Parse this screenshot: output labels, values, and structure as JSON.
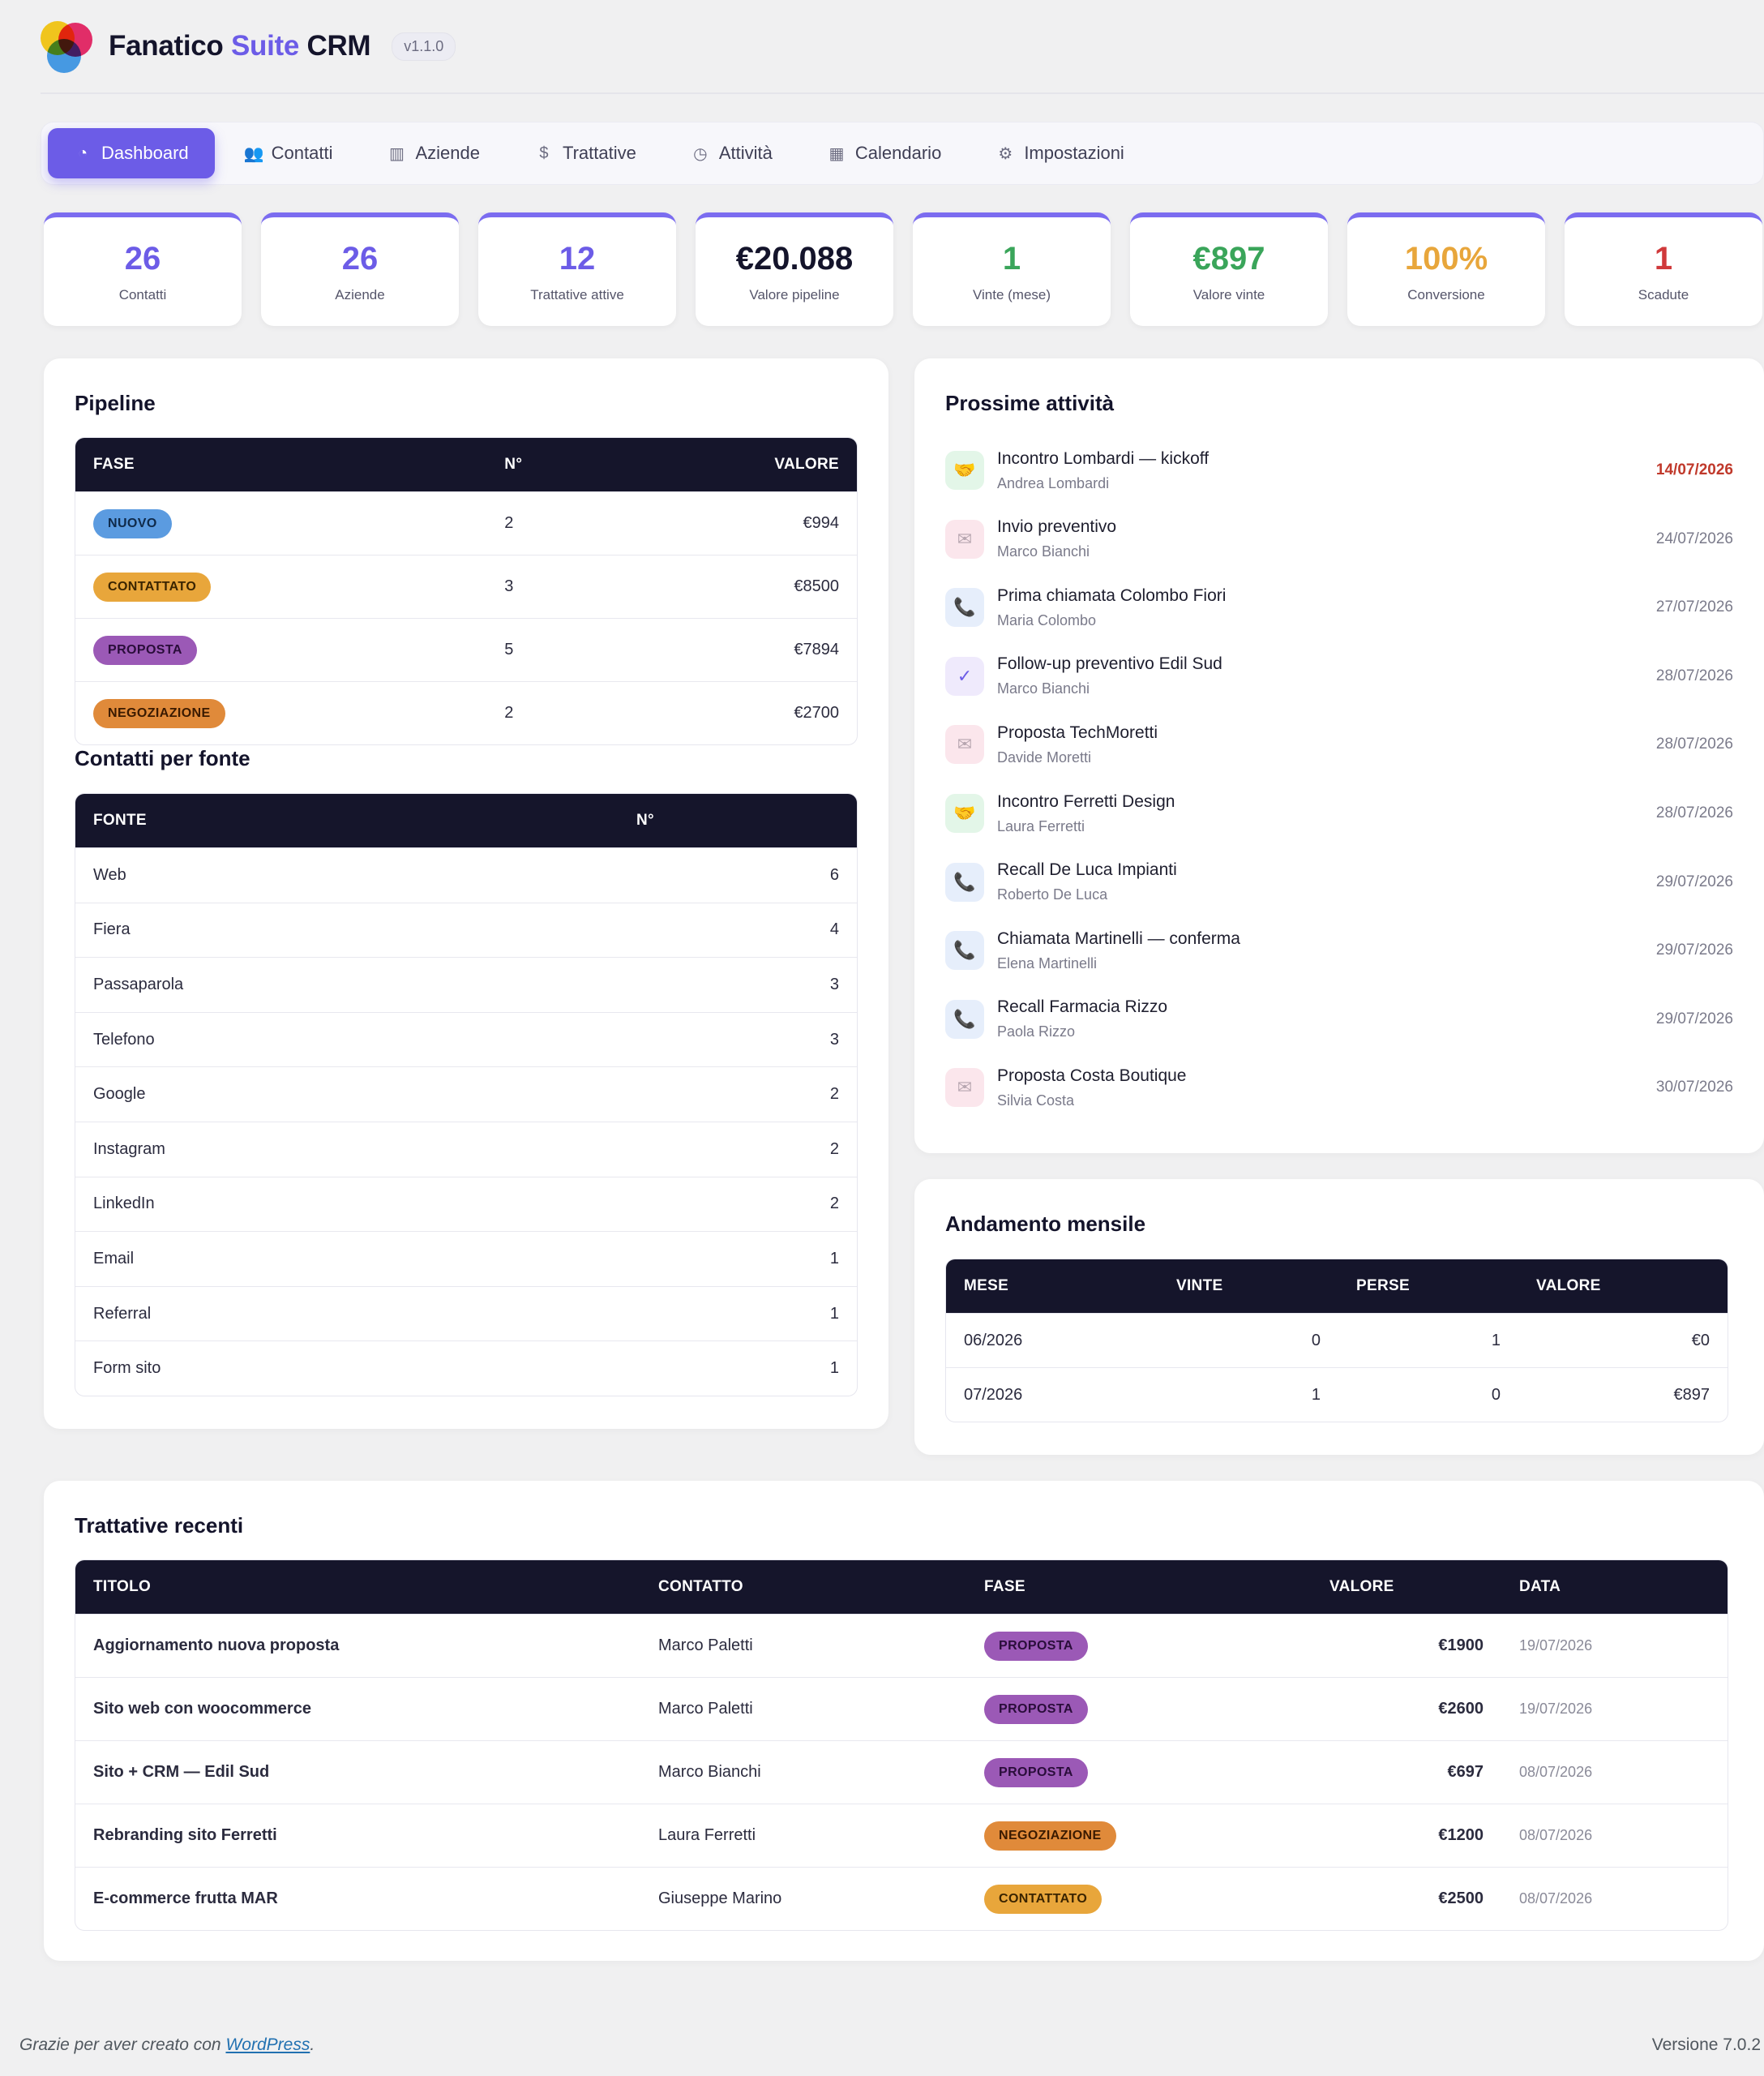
{
  "header": {
    "brand_main": "Fanatico",
    "brand_suite": "Suite",
    "brand_crm": "CRM",
    "version": "v1.1.0"
  },
  "nav": [
    {
      "label": "Dashboard",
      "icon": "dashboard-icon",
      "active": true
    },
    {
      "label": "Contatti",
      "icon": "users-icon"
    },
    {
      "label": "Aziende",
      "icon": "building-icon"
    },
    {
      "label": "Trattative",
      "icon": "dollar-icon"
    },
    {
      "label": "Attività",
      "icon": "clock-icon"
    },
    {
      "label": "Calendario",
      "icon": "calendar-icon"
    },
    {
      "label": "Impostazioni",
      "icon": "gear-icon"
    }
  ],
  "stats": [
    {
      "value": "26",
      "label": "Contatti",
      "color": "#6c5ce7"
    },
    {
      "value": "26",
      "label": "Aziende",
      "color": "#6c5ce7"
    },
    {
      "value": "12",
      "label": "Trattative attive",
      "color": "#6c5ce7"
    },
    {
      "value": "€20.088",
      "label": "Valore pipeline",
      "color": "#14142b"
    },
    {
      "value": "1",
      "label": "Vinte (mese)",
      "color": "#3aa55a"
    },
    {
      "value": "€897",
      "label": "Valore vinte",
      "color": "#3aa55a"
    },
    {
      "value": "100%",
      "label": "Conversione",
      "color": "#e8a63b"
    },
    {
      "value": "1",
      "label": "Scadute",
      "color": "#d0393b"
    }
  ],
  "pipeline": {
    "title": "Pipeline",
    "headers": [
      "FASE",
      "N°",
      "VALORE"
    ],
    "rows": [
      {
        "fase": "NUOVO",
        "cls": "b-nuovo",
        "n": "2",
        "valore": "€994"
      },
      {
        "fase": "CONTATTATO",
        "cls": "b-contattato",
        "n": "3",
        "valore": "€8500"
      },
      {
        "fase": "PROPOSTA",
        "cls": "b-proposta",
        "n": "5",
        "valore": "€7894"
      },
      {
        "fase": "NEGOZIAZIONE",
        "cls": "b-negoziazione",
        "n": "2",
        "valore": "€2700"
      }
    ]
  },
  "fonti": {
    "title": "Contatti per fonte",
    "headers": [
      "FONTE",
      "N°"
    ],
    "rows": [
      {
        "fonte": "Web",
        "n": "6"
      },
      {
        "fonte": "Fiera",
        "n": "4"
      },
      {
        "fonte": "Passaparola",
        "n": "3"
      },
      {
        "fonte": "Telefono",
        "n": "3"
      },
      {
        "fonte": "Google",
        "n": "2"
      },
      {
        "fonte": "Instagram",
        "n": "2"
      },
      {
        "fonte": "LinkedIn",
        "n": "2"
      },
      {
        "fonte": "Email",
        "n": "1"
      },
      {
        "fonte": "Referral",
        "n": "1"
      },
      {
        "fonte": "Form sito",
        "n": "1"
      }
    ]
  },
  "attivita": {
    "title": "Prossime attività",
    "items": [
      {
        "title": "Incontro Lombardi — kickoff",
        "who": "Andrea Lombardi",
        "date": "14/07/2026",
        "type": "meet",
        "overdue": true
      },
      {
        "title": "Invio preventivo",
        "who": "Marco Bianchi",
        "date": "24/07/2026",
        "type": "mail"
      },
      {
        "title": "Prima chiamata Colombo Fiori",
        "who": "Maria Colombo",
        "date": "27/07/2026",
        "type": "call"
      },
      {
        "title": "Follow-up preventivo Edil Sud",
        "who": "Marco Bianchi",
        "date": "28/07/2026",
        "type": "task"
      },
      {
        "title": "Proposta TechMoretti",
        "who": "Davide Moretti",
        "date": "28/07/2026",
        "type": "mail"
      },
      {
        "title": "Incontro Ferretti Design",
        "who": "Laura Ferretti",
        "date": "28/07/2026",
        "type": "meet"
      },
      {
        "title": "Recall De Luca Impianti",
        "who": "Roberto De Luca",
        "date": "29/07/2026",
        "type": "call"
      },
      {
        "title": "Chiamata Martinelli — conferma",
        "who": "Elena Martinelli",
        "date": "29/07/2026",
        "type": "call"
      },
      {
        "title": "Recall Farmacia Rizzo",
        "who": "Paola Rizzo",
        "date": "29/07/2026",
        "type": "call"
      },
      {
        "title": "Proposta Costa Boutique",
        "who": "Silvia Costa",
        "date": "30/07/2026",
        "type": "mail"
      }
    ]
  },
  "andamento": {
    "title": "Andamento mensile",
    "headers": [
      "MESE",
      "VINTE",
      "PERSE",
      "VALORE"
    ],
    "rows": [
      {
        "mese": "06/2026",
        "vinte": "0",
        "perse": "1",
        "valore": "€0"
      },
      {
        "mese": "07/2026",
        "vinte": "1",
        "perse": "0",
        "valore": "€897"
      }
    ]
  },
  "recenti": {
    "title": "Trattative recenti",
    "headers": [
      "TITOLO",
      "CONTATTO",
      "FASE",
      "VALORE",
      "DATA"
    ],
    "rows": [
      {
        "titolo": "Aggiornamento nuova proposta",
        "contatto": "Marco Paletti",
        "fase": "PROPOSTA",
        "cls": "b-proposta",
        "valore": "€1900",
        "data": "19/07/2026"
      },
      {
        "titolo": "Sito web con woocommerce",
        "contatto": "Marco Paletti",
        "fase": "PROPOSTA",
        "cls": "b-proposta",
        "valore": "€2600",
        "data": "19/07/2026"
      },
      {
        "titolo": "Sito + CRM — Edil Sud",
        "contatto": "Marco Bianchi",
        "fase": "PROPOSTA",
        "cls": "b-proposta",
        "valore": "€697",
        "data": "08/07/2026"
      },
      {
        "titolo": "Rebranding sito Ferretti",
        "contatto": "Laura Ferretti",
        "fase": "NEGOZIAZIONE",
        "cls": "b-negoziazione",
        "valore": "€1200",
        "data": "08/07/2026"
      },
      {
        "titolo": "E-commerce frutta MAR",
        "contatto": "Giuseppe Marino",
        "fase": "CONTATTATO",
        "cls": "b-contattato",
        "valore": "€2500",
        "data": "08/07/2026"
      }
    ]
  },
  "footer": {
    "thanks_prefix": "Grazie per aver creato con",
    "wp_link": "WordPress",
    "thanks_suffix": ".",
    "version": "Versione 7.0.2"
  }
}
